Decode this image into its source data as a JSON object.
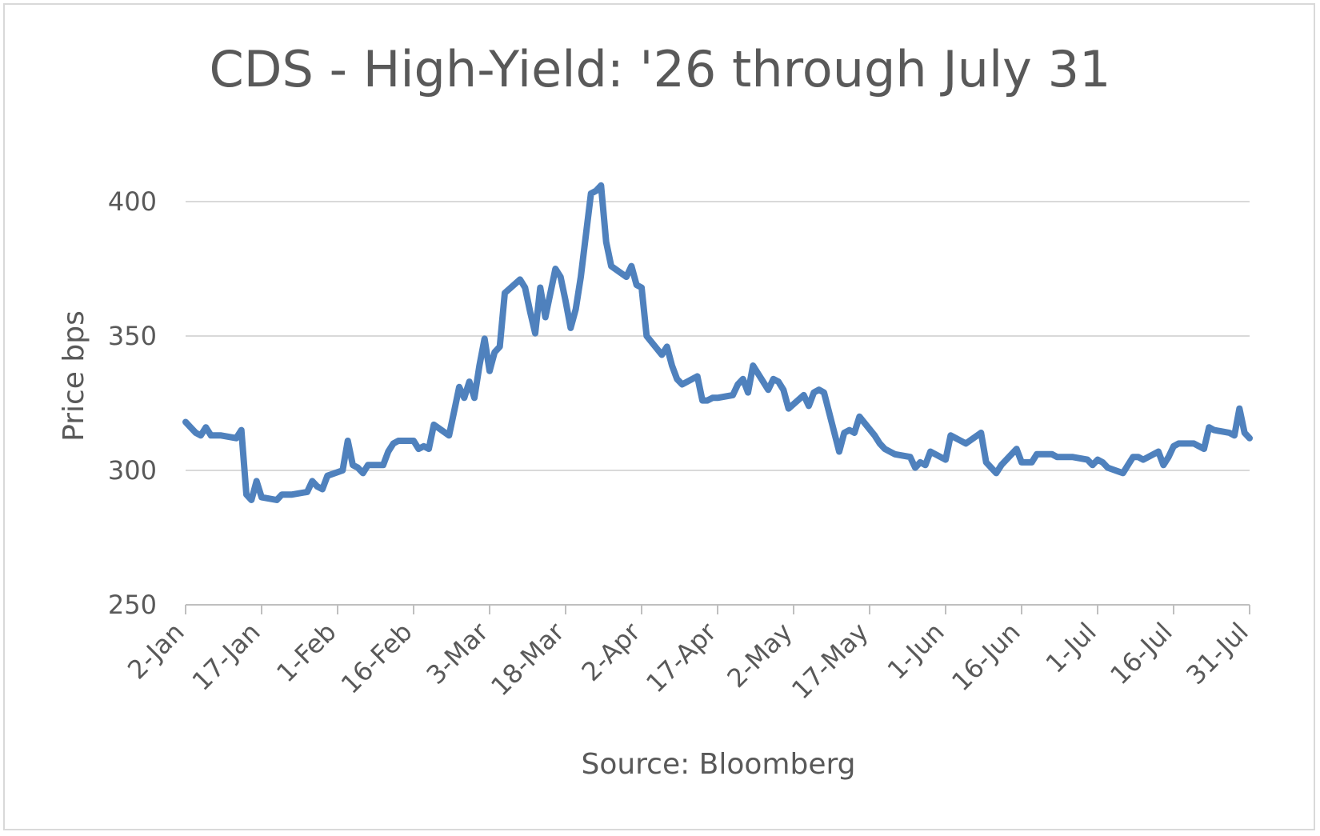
{
  "chart_data": {
    "type": "line",
    "title": "CDS - High-Yield: '26 through July 31",
    "ylabel": "Price bps",
    "xlabel": "Source: Bloomberg",
    "ylim": [
      250,
      400
    ],
    "yticks": [
      250,
      300,
      350,
      400
    ],
    "xlim": [
      "2-Jan",
      "31-Jul"
    ],
    "grid": true,
    "legend": "none",
    "color": "#4f81bd",
    "x_ticks": [
      "2-Jan",
      "17-Jan",
      "1-Feb",
      "16-Feb",
      "3-Mar",
      "18-Mar",
      "2-Apr",
      "17-Apr",
      "2-May",
      "17-May",
      "1-Jun",
      "16-Jun",
      "1-Jul",
      "16-Jul",
      "31-Jul"
    ],
    "series": [
      {
        "x": [
          "2-Jan",
          "3-Jan",
          "4-Jan",
          "5-Jan",
          "6-Jan",
          "7-Jan",
          "8-Jan",
          "9-Jan",
          "12-Jan",
          "13-Jan",
          "14-Jan",
          "15-Jan",
          "16-Jan",
          "17-Jan",
          "20-Jan",
          "21-Jan",
          "22-Jan",
          "23-Jan",
          "26-Jan",
          "27-Jan",
          "28-Jan",
          "29-Jan",
          "30-Jan",
          "2-Feb",
          "3-Feb",
          "4-Feb",
          "5-Feb",
          "6-Feb",
          "7-Feb",
          "10-Feb",
          "11-Feb",
          "12-Feb",
          "13-Feb",
          "16-Feb",
          "17-Feb",
          "18-Feb",
          "19-Feb",
          "20-Feb",
          "23-Feb",
          "24-Feb",
          "25-Feb",
          "26-Feb",
          "27-Feb",
          "28-Feb",
          "1-Mar",
          "2-Mar",
          "3-Mar",
          "4-Mar",
          "5-Mar",
          "6-Mar",
          "9-Mar",
          "10-Mar",
          "11-Mar",
          "12-Mar",
          "13-Mar",
          "14-Mar",
          "16-Mar",
          "17-Mar",
          "18-Mar",
          "19-Mar",
          "20-Mar",
          "21-Mar",
          "23-Mar",
          "24-Mar",
          "25-Mar",
          "26-Mar",
          "27-Mar",
          "30-Mar",
          "31-Mar",
          "1-Apr",
          "2-Apr",
          "3-Apr",
          "6-Apr",
          "7-Apr",
          "8-Apr",
          "9-Apr",
          "10-Apr",
          "13-Apr",
          "14-Apr",
          "15-Apr",
          "16-Apr",
          "17-Apr",
          "20-Apr",
          "21-Apr",
          "22-Apr",
          "23-Apr",
          "24-Apr",
          "27-Apr",
          "28-Apr",
          "29-Apr",
          "30-Apr",
          "1-May",
          "4-May",
          "5-May",
          "6-May",
          "7-May",
          "8-May",
          "11-May",
          "12-May",
          "13-May",
          "14-May",
          "15-May",
          "18-May",
          "19-May",
          "20-May",
          "21-May",
          "22-May",
          "25-May",
          "26-May",
          "27-May",
          "28-May",
          "29-May",
          "1-Jun",
          "2-Jun",
          "3-Jun",
          "4-Jun",
          "5-Jun",
          "8-Jun",
          "9-Jun",
          "10-Jun",
          "11-Jun",
          "12-Jun",
          "15-Jun",
          "16-Jun",
          "17-Jun",
          "18-Jun",
          "19-Jun",
          "22-Jun",
          "23-Jun",
          "24-Jun",
          "25-Jun",
          "26-Jun",
          "29-Jun",
          "30-Jun",
          "1-Jul",
          "2-Jul",
          "3-Jul",
          "6-Jul",
          "7-Jul",
          "8-Jul",
          "9-Jul",
          "10-Jul",
          "13-Jul",
          "14-Jul",
          "15-Jul",
          "16-Jul",
          "17-Jul",
          "20-Jul",
          "21-Jul",
          "22-Jul",
          "23-Jul",
          "24-Jul",
          "27-Jul",
          "28-Jul",
          "29-Jul",
          "30-Jul",
          "31-Jul"
        ],
        "values": [
          318,
          316,
          314,
          313,
          316,
          313,
          313,
          313,
          312,
          315,
          291,
          289,
          296,
          290,
          289,
          291,
          291,
          291,
          292,
          296,
          294,
          293,
          298,
          300,
          311,
          302,
          301,
          299,
          302,
          302,
          307,
          310,
          311,
          311,
          308,
          309,
          308,
          317,
          313,
          322,
          331,
          327,
          333,
          327,
          339,
          349,
          337,
          344,
          346,
          366,
          371,
          368,
          359,
          351,
          368,
          357,
          375,
          372,
          363,
          353,
          360,
          372,
          403,
          404,
          406,
          385,
          376,
          372,
          376,
          369,
          368,
          350,
          343,
          346,
          339,
          334,
          332,
          335,
          326,
          326,
          327,
          327,
          328,
          332,
          334,
          329,
          339,
          330,
          334,
          333,
          330,
          323,
          328,
          324,
          329,
          330,
          329,
          307,
          314,
          315,
          314,
          320,
          313,
          310,
          308,
          307,
          306,
          305,
          301,
          303,
          302,
          307,
          304,
          313,
          312,
          311,
          310,
          314,
          303,
          301,
          299,
          302,
          308,
          303,
          303,
          303,
          306,
          306,
          305,
          305,
          305,
          305,
          304,
          302,
          304,
          303,
          301,
          299,
          302,
          305,
          305,
          304,
          307,
          302,
          305,
          309,
          310,
          310,
          309,
          308,
          316,
          315,
          314,
          313,
          323,
          314,
          312
        ]
      }
    ]
  }
}
